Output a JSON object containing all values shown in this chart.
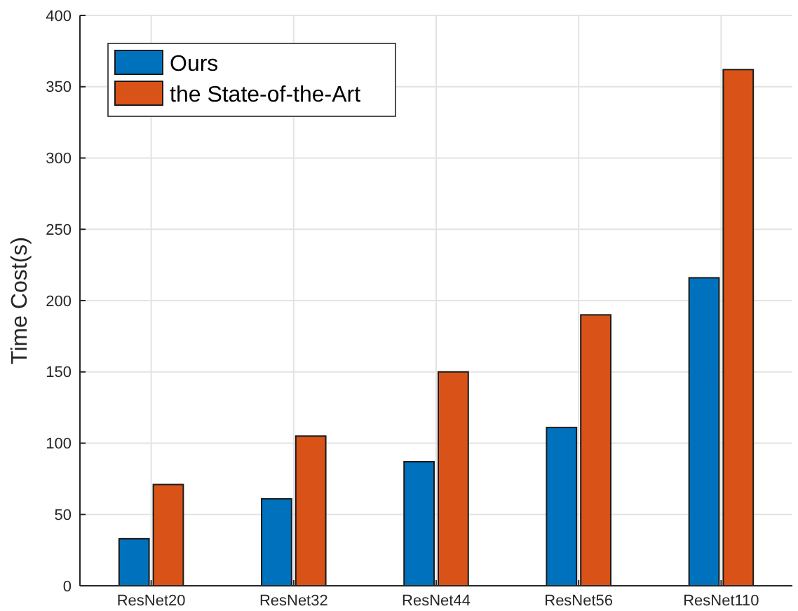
{
  "chart_data": {
    "type": "bar",
    "ylabel": "Time Cost(s)",
    "categories": [
      "ResNet20",
      "ResNet32",
      "ResNet44",
      "ResNet56",
      "ResNet110"
    ],
    "series": [
      {
        "name": "Ours",
        "color": "#0072bd",
        "values": [
          33,
          61,
          87,
          111,
          216
        ]
      },
      {
        "name": "the State-of-the-Art",
        "color": "#d95319",
        "values": [
          71,
          105,
          150,
          190,
          362
        ]
      }
    ],
    "ylim": [
      0,
      400
    ],
    "yticks": [
      0,
      50,
      100,
      150,
      200,
      250,
      300,
      350,
      400
    ],
    "grid": true,
    "legend": "top left"
  }
}
